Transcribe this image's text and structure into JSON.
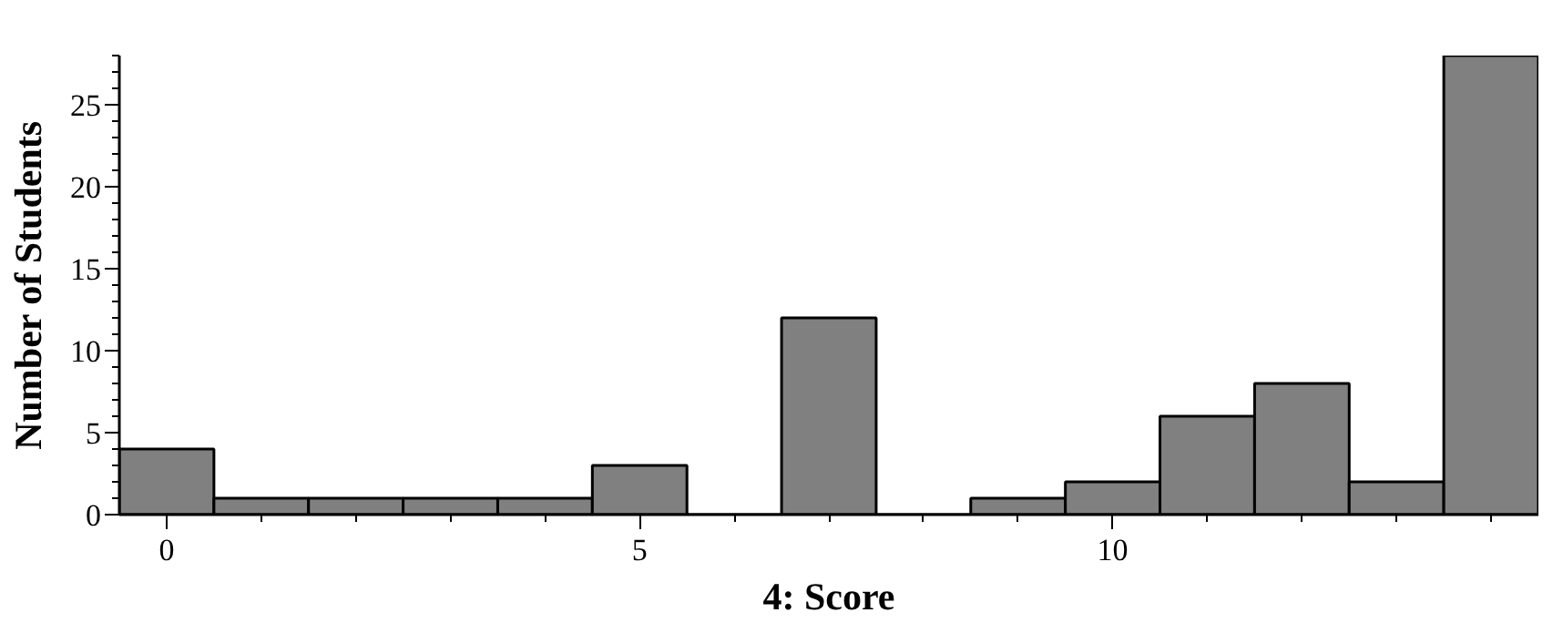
{
  "chart_data": {
    "type": "histogram",
    "xlabel": "4: Score",
    "ylabel": "Number of Students",
    "bins": [
      -0.5,
      0.5,
      1.5,
      2.5,
      3.5,
      4.5,
      5.5,
      6.5,
      7.5,
      8.5,
      9.5,
      10.5,
      11.5,
      12.5,
      13.5,
      14.5
    ],
    "values": [
      4,
      1,
      1,
      1,
      1,
      3,
      0,
      12,
      0,
      1,
      2,
      6,
      8,
      2,
      28
    ],
    "color": "#808080",
    "xlim": [
      -0.5,
      14.5
    ],
    "ylim": [
      0,
      28
    ],
    "xticks": [
      0,
      5,
      10
    ],
    "yticks": [
      0,
      5,
      10,
      15,
      20,
      25
    ],
    "grid": false
  }
}
